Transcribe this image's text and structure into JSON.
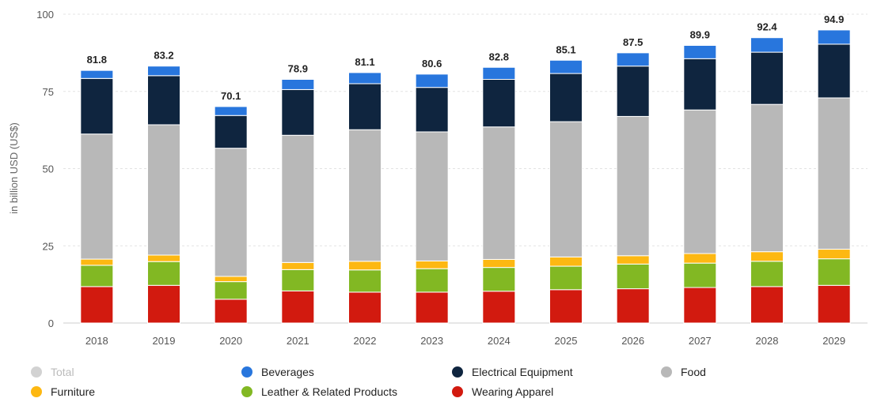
{
  "chart_data": {
    "type": "bar",
    "stacked": true,
    "ylabel": "in billion USD (US$)",
    "ylim": [
      0,
      100
    ],
    "yticks": [
      0,
      25,
      50,
      75,
      100
    ],
    "grid": "horizontal dashed",
    "legend_position": "bottom",
    "categories": [
      "2018",
      "2019",
      "2020",
      "2021",
      "2022",
      "2023",
      "2024",
      "2025",
      "2026",
      "2027",
      "2028",
      "2029"
    ],
    "totals": [
      "81.8",
      "83.2",
      "70.1",
      "78.9",
      "81.1",
      "80.6",
      "82.8",
      "85.1",
      "87.5",
      "89.9",
      "92.4",
      "94.9"
    ],
    "series": [
      {
        "name": "Wearing Apparel",
        "color": "#d21a0f",
        "values": [
          11.8,
          12.2,
          7.7,
          10.4,
          10.0,
          10.0,
          10.3,
          10.8,
          11.1,
          11.5,
          11.8,
          12.2
        ]
      },
      {
        "name": "Leather & Related Products",
        "color": "#82b823",
        "values": [
          6.9,
          7.7,
          5.7,
          6.9,
          7.2,
          7.6,
          7.7,
          7.6,
          8.0,
          7.9,
          8.2,
          8.6
        ]
      },
      {
        "name": "Furniture",
        "color": "#fdb812",
        "values": [
          2.0,
          2.1,
          1.7,
          2.3,
          2.8,
          2.5,
          2.6,
          3.0,
          2.7,
          3.1,
          3.1,
          3.1
        ]
      },
      {
        "name": "Food",
        "color": "#b8b8b8",
        "values": [
          40.5,
          42.2,
          41.5,
          41.2,
          42.6,
          41.8,
          42.9,
          43.8,
          45.1,
          46.5,
          47.7,
          49.0
        ]
      },
      {
        "name": "Electrical Equipment",
        "color": "#0f253f",
        "values": [
          18.0,
          15.9,
          10.6,
          14.8,
          14.9,
          14.4,
          15.4,
          15.6,
          16.3,
          16.6,
          16.9,
          17.4
        ]
      },
      {
        "name": "Beverages",
        "color": "#2876dd",
        "values": [
          2.6,
          3.1,
          2.9,
          3.3,
          3.6,
          4.3,
          3.9,
          4.3,
          4.3,
          4.3,
          4.7,
          4.6
        ]
      }
    ]
  },
  "legend": {
    "items": [
      {
        "label": "Total",
        "color": "#d2d2d2",
        "muted": true
      },
      {
        "label": "Beverages",
        "color": "#2876dd",
        "muted": false
      },
      {
        "label": "Electrical Equipment",
        "color": "#0f253f",
        "muted": false
      },
      {
        "label": "Food",
        "color": "#b8b8b8",
        "muted": false
      },
      {
        "label": "Furniture",
        "color": "#fdb812",
        "muted": false
      },
      {
        "label": "Leather & Related Products",
        "color": "#82b823",
        "muted": false
      },
      {
        "label": "Wearing Apparel",
        "color": "#d21a0f",
        "muted": false
      }
    ]
  }
}
